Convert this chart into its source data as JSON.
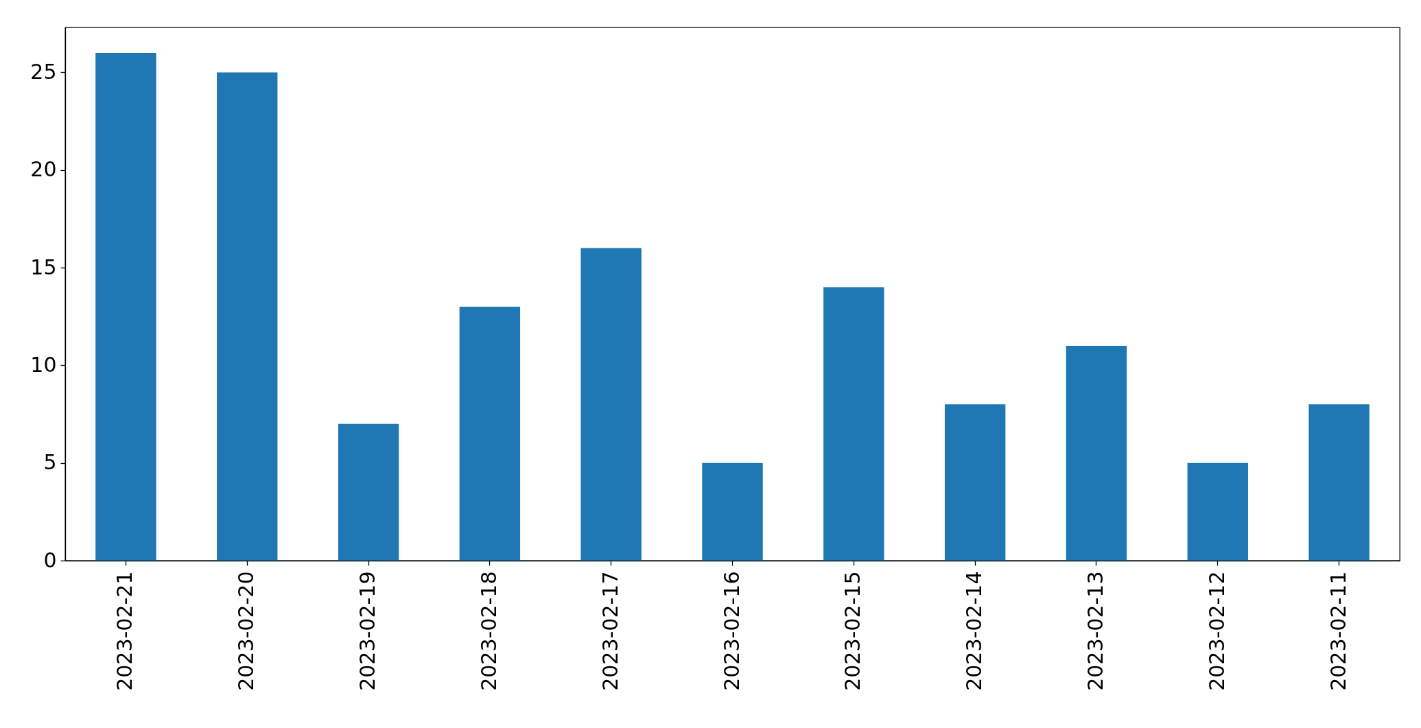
{
  "chart_data": {
    "type": "bar",
    "categories": [
      "2023-02-21",
      "2023-02-20",
      "2023-02-19",
      "2023-02-18",
      "2023-02-17",
      "2023-02-16",
      "2023-02-15",
      "2023-02-14",
      "2023-02-13",
      "2023-02-12",
      "2023-02-11"
    ],
    "values": [
      26,
      25,
      7,
      13,
      16,
      5,
      14,
      8,
      11,
      5,
      8
    ],
    "color": "#1f77b4",
    "ylim": [
      0,
      27.3
    ],
    "yticks": [
      0,
      5,
      10,
      15,
      20,
      25
    ],
    "grid": false
  }
}
